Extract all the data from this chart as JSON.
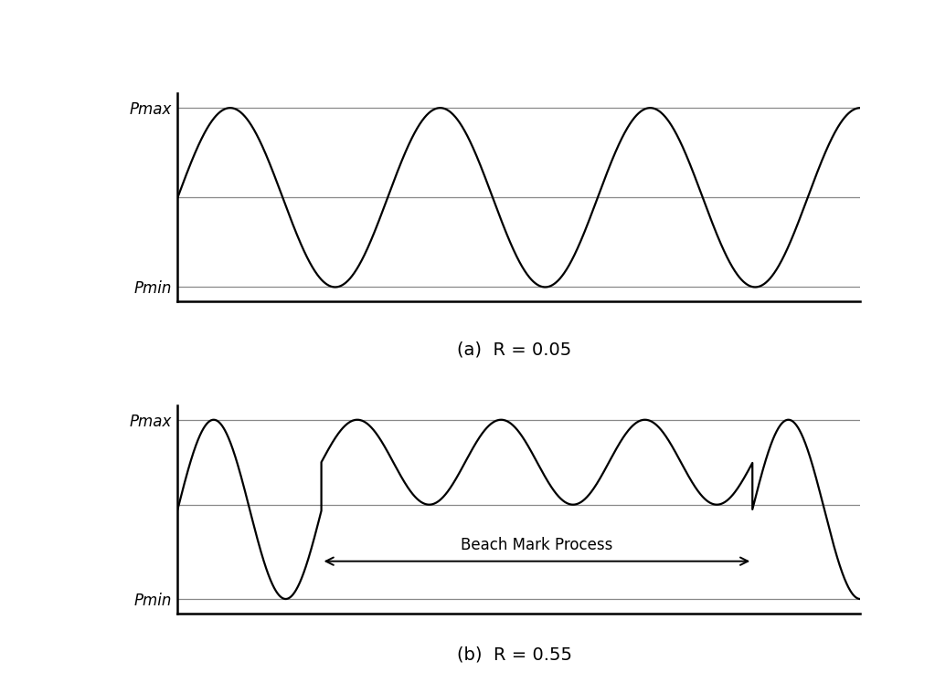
{
  "fig_width": 10.23,
  "fig_height": 7.59,
  "background_color": "#ffffff",
  "line_color": "#000000",
  "hline_color": "#888888",
  "panel_a": {
    "caption": "(a)  R = 0.05",
    "pmax": 1.0,
    "pmin": 0.05,
    "label_pmax": "Pmax",
    "label_pmin": "Pmin"
  },
  "panel_b": {
    "caption": "(b)  R = 0.55",
    "pmax_large": 1.0,
    "pmin_large": 0.05,
    "pmax_small": 1.0,
    "pmin_small": 0.55,
    "label_pmax": "Pmax",
    "label_pmin": "Pmin",
    "beach_mark_label": "Beach Mark Process"
  },
  "caption_fontsize": 14,
  "label_fontsize": 12,
  "annotation_fontsize": 12,
  "line_width": 1.6
}
